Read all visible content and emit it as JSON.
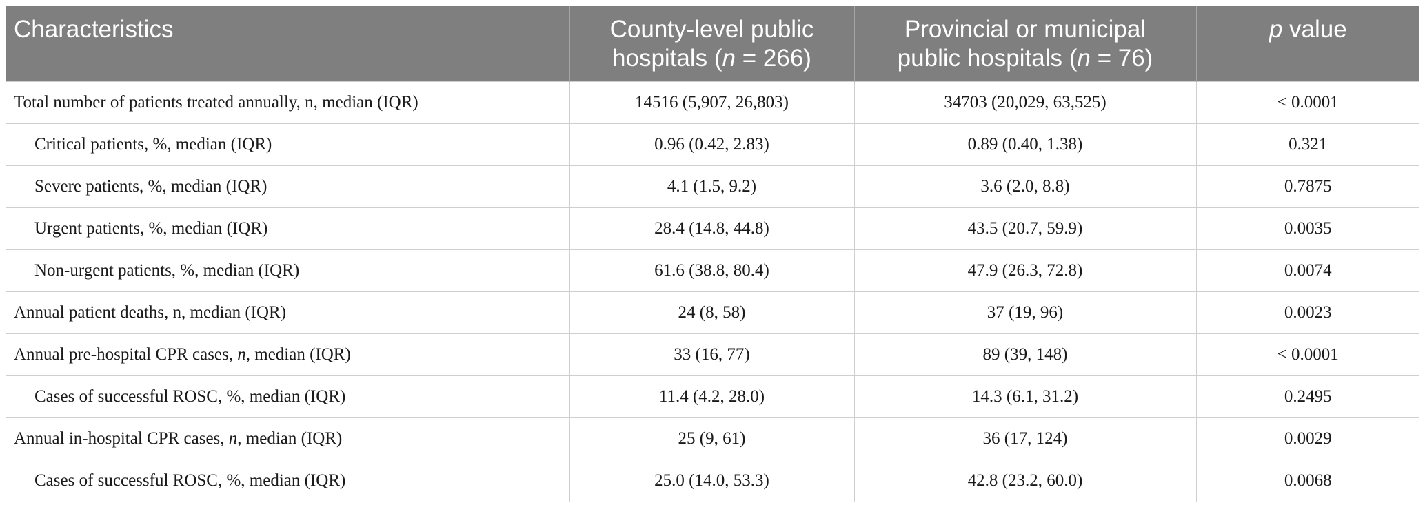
{
  "table": {
    "header": {
      "col1": "Characteristics",
      "col2_line1": "County-level public",
      "col2_line2_pre": "hospitals (",
      "col2_n": "n",
      "col2_line2_post": " = 266)",
      "col3_line1": "Provincial or municipal",
      "col3_line2_pre": "public hospitals (",
      "col3_n": "n",
      "col3_line2_post": " = 76)",
      "col4_p": "p",
      "col4_rest": " value"
    },
    "rows": [
      {
        "label": "Total number of patients treated annually, n, median (IQR)",
        "county": "14516 (5,907, 26,803)",
        "provincial": "34703 (20,029, 63,525)",
        "p": "< 0.0001"
      },
      {
        "label": "Critical patients, %, median (IQR)",
        "county": "0.96 (0.42, 2.83)",
        "provincial": "0.89 (0.40, 1.38)",
        "p": "0.321"
      },
      {
        "label": "Severe patients, %, median (IQR)",
        "county": "4.1 (1.5, 9.2)",
        "provincial": "3.6 (2.0, 8.8)",
        "p": "0.7875"
      },
      {
        "label": "Urgent patients, %, median (IQR)",
        "county": "28.4 (14.8, 44.8)",
        "provincial": "43.5 (20.7, 59.9)",
        "p": "0.0035"
      },
      {
        "label": "Non-urgent patients, %, median (IQR)",
        "county": "61.6 (38.8, 80.4)",
        "provincial": "47.9 (26.3, 72.8)",
        "p": "0.0074"
      },
      {
        "label": "Annual patient deaths, n, median (IQR)",
        "county": "24 (8, 58)",
        "provincial": "37 (19, 96)",
        "p": "0.0023"
      },
      {
        "label_pre": "Annual pre-hospital CPR cases, ",
        "label_n": "n",
        "label_post": ", median (IQR)",
        "county": "33 (16, 77)",
        "provincial": "89 (39, 148)",
        "p": "< 0.0001"
      },
      {
        "label": "Cases of successful ROSC, %, median (IQR)",
        "county": "11.4 (4.2, 28.0)",
        "provincial": "14.3 (6.1, 31.2)",
        "p": "0.2495"
      },
      {
        "label_pre": "Annual in-hospital CPR cases, ",
        "label_n": "n",
        "label_post": ", median (IQR)",
        "county": "25 (9, 61)",
        "provincial": "36 (17, 124)",
        "p": "0.0029"
      },
      {
        "label": "Cases of successful ROSC, %, median (IQR)",
        "county": "25.0 (14.0, 53.3)",
        "provincial": "42.8 (23.2, 60.0)",
        "p": "0.0068"
      }
    ]
  },
  "colors": {
    "header_bg": "#7f7f7f",
    "header_text": "#ffffff",
    "body_text": "#1a1a1a",
    "grid_line": "#cfcfcf"
  }
}
